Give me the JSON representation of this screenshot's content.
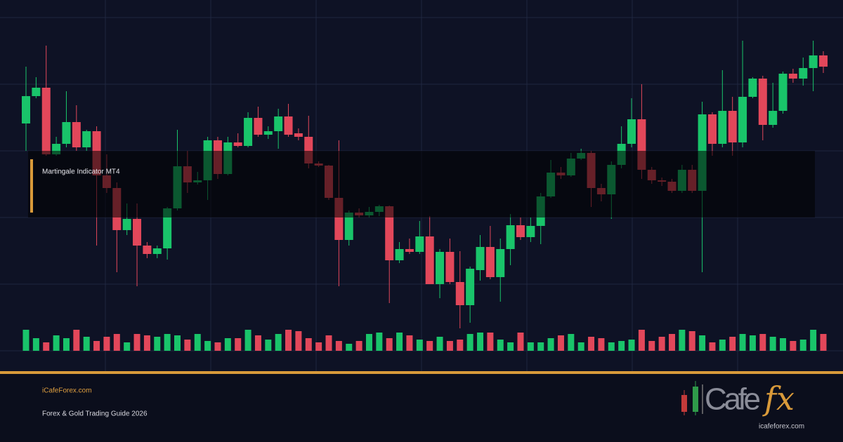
{
  "chart_data": {
    "type": "candlestick",
    "open": [
      324,
      363,
      375,
      280,
      295,
      326,
      290,
      313,
      250,
      232,
      172,
      188,
      150,
      138,
      146,
      203,
      263,
      240,
      243,
      300,
      252,
      297,
      292,
      332,
      308,
      313,
      334,
      310,
      305,
      267,
      264,
      218,
      158,
      197,
      193,
      198,
      206,
      129,
      145,
      141,
      163,
      95,
      141,
      98,
      65,
      115,
      148,
      105,
      145,
      179,
      162,
      178,
      220,
      254,
      250,
      274,
      282,
      232,
      223,
      265,
      295,
      330,
      258,
      243,
      241,
      228,
      258,
      228,
      337,
      295,
      342,
      297,
      362,
      388,
      322,
      342,
      395,
      388,
      403,
      421
    ],
    "high": [
      405,
      390,
      435,
      305,
      370,
      350,
      315,
      320,
      280,
      240,
      210,
      210,
      155,
      150,
      205,
      315,
      285,
      255,
      305,
      305,
      305,
      310,
      340,
      348,
      320,
      345,
      352,
      317,
      335,
      270,
      265,
      300,
      200,
      203,
      205,
      208,
      207,
      155,
      160,
      185,
      192,
      145,
      160,
      142,
      120,
      165,
      178,
      160,
      195,
      190,
      190,
      225,
      272,
      262,
      282,
      288,
      285,
      238,
      270,
      320,
      360,
      380,
      262,
      247,
      245,
      265,
      265,
      355,
      340,
      400,
      362,
      442,
      390,
      392,
      382,
      398,
      402,
      418,
      442,
      427
    ],
    "low": [
      285,
      360,
      278,
      278,
      290,
      285,
      285,
      150,
      225,
      112,
      165,
      92,
      132,
      132,
      130,
      200,
      225,
      237,
      215,
      245,
      250,
      290,
      290,
      305,
      302,
      288,
      305,
      300,
      260,
      262,
      215,
      92,
      150,
      190,
      190,
      192,
      68,
      125,
      138,
      138,
      95,
      75,
      95,
      32,
      40,
      100,
      102,
      70,
      122,
      158,
      155,
      152,
      218,
      245,
      248,
      272,
      205,
      213,
      188,
      260,
      290,
      245,
      238,
      235,
      225,
      225,
      225,
      112,
      278,
      290,
      278,
      290,
      360,
      300,
      318,
      338,
      382,
      378,
      370,
      396
    ],
    "close": [
      363,
      375,
      280,
      295,
      326,
      290,
      313,
      250,
      232,
      172,
      188,
      150,
      138,
      146,
      203,
      263,
      240,
      243,
      300,
      252,
      297,
      292,
      332,
      308,
      313,
      334,
      308,
      305,
      267,
      264,
      218,
      158,
      197,
      193,
      198,
      206,
      129,
      145,
      141,
      163,
      95,
      141,
      98,
      65,
      117,
      148,
      105,
      145,
      179,
      162,
      178,
      220,
      254,
      250,
      274,
      282,
      232,
      223,
      265,
      295,
      330,
      258,
      243,
      241,
      228,
      258,
      228,
      337,
      295,
      342,
      297,
      362,
      388,
      322,
      342,
      395,
      388,
      403,
      421,
      405
    ],
    "ylim": [
      0,
      500
    ],
    "up_color": "#19c46a",
    "down_color": "#e2475a",
    "volume": {
      "values": [
        30,
        18,
        12,
        22,
        18,
        30,
        20,
        14,
        20,
        24,
        12,
        24,
        22,
        20,
        24,
        22,
        16,
        24,
        14,
        12,
        18,
        18,
        30,
        22,
        16,
        24,
        30,
        28,
        18,
        12,
        22,
        14,
        10,
        14,
        24,
        26,
        18,
        26,
        22,
        16,
        14,
        20,
        14,
        16,
        24,
        26,
        26,
        16,
        12,
        26,
        12,
        12,
        18,
        22,
        24,
        12,
        20,
        18,
        12,
        14,
        16,
        30,
        14,
        20,
        24,
        30,
        28,
        22,
        12,
        16,
        20,
        24,
        22,
        24,
        20,
        18,
        14,
        16,
        30,
        24
      ],
      "ylim": [
        0,
        32
      ]
    }
  },
  "overlay": {
    "label": "Martingale Indicator MT4"
  },
  "footer": {
    "site": "iCafeForex.com",
    "subtitle": "Forex & Gold Trading Guide 2026"
  },
  "logo": {
    "text": "Cafe",
    "accent": "fx",
    "url": "icafeforex.com"
  }
}
